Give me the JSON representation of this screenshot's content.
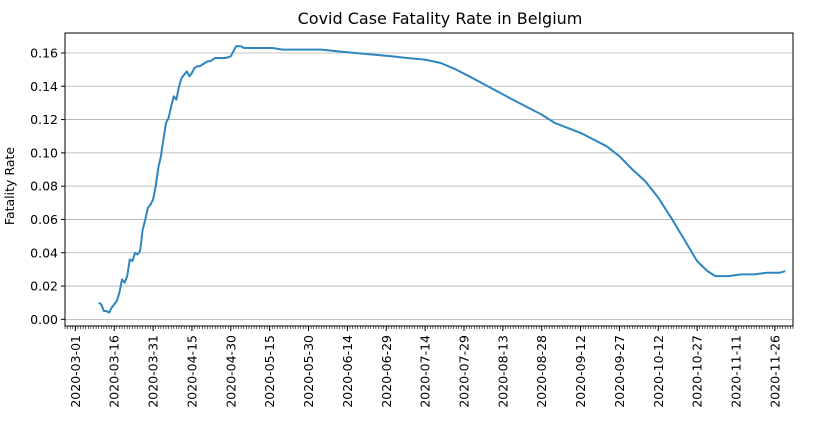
{
  "chart_data": {
    "type": "line",
    "title": "Covid Case Fatality Rate in Belgium",
    "xlabel": "",
    "ylabel": "Fatality Rate",
    "grid": "horizontal",
    "xlim": [
      "2020-02-26",
      "2020-12-03"
    ],
    "ylim": [
      -0.004,
      0.172
    ],
    "yticks": [
      0.0,
      0.02,
      0.04,
      0.06,
      0.08,
      0.1,
      0.12,
      0.14,
      0.16
    ],
    "ytick_labels": [
      "0.00",
      "0.02",
      "0.04",
      "0.06",
      "0.08",
      "0.10",
      "0.12",
      "0.14",
      "0.16"
    ],
    "xtick_labels": [
      "2020-03-01",
      "2020-03-16",
      "2020-03-31",
      "2020-04-15",
      "2020-04-30",
      "2020-05-15",
      "2020-05-30",
      "2020-06-14",
      "2020-06-29",
      "2020-07-14",
      "2020-07-29",
      "2020-08-13",
      "2020-08-28",
      "2020-09-12",
      "2020-09-27",
      "2020-10-12",
      "2020-10-27",
      "2020-11-11",
      "2020-11-26"
    ],
    "line_color": "#2e86c1",
    "series": [
      {
        "x": [
          "2020-03-10",
          "2020-03-11",
          "2020-03-12",
          "2020-03-13",
          "2020-03-14",
          "2020-03-15",
          "2020-03-16",
          "2020-03-17",
          "2020-03-18",
          "2020-03-19",
          "2020-03-20",
          "2020-03-21",
          "2020-03-22",
          "2020-03-23",
          "2020-03-24",
          "2020-03-25",
          "2020-03-26",
          "2020-03-27",
          "2020-03-28",
          "2020-03-29",
          "2020-03-30",
          "2020-03-31",
          "2020-04-01",
          "2020-04-02",
          "2020-04-03",
          "2020-04-04",
          "2020-04-05",
          "2020-04-06",
          "2020-04-07",
          "2020-04-08",
          "2020-04-09",
          "2020-04-10",
          "2020-04-11",
          "2020-04-12",
          "2020-04-13",
          "2020-04-14",
          "2020-04-15",
          "2020-04-16",
          "2020-04-17",
          "2020-04-18",
          "2020-04-19",
          "2020-04-20",
          "2020-04-21",
          "2020-04-22",
          "2020-04-23",
          "2020-04-24",
          "2020-04-25",
          "2020-04-26",
          "2020-04-28",
          "2020-04-30",
          "2020-05-02",
          "2020-05-04",
          "2020-05-05",
          "2020-05-07",
          "2020-05-10",
          "2020-05-13",
          "2020-05-16",
          "2020-05-20",
          "2020-05-25",
          "2020-05-30",
          "2020-06-04",
          "2020-06-10",
          "2020-06-17",
          "2020-06-24",
          "2020-07-01",
          "2020-07-07",
          "2020-07-14",
          "2020-07-20",
          "2020-07-26",
          "2020-07-31",
          "2020-08-06",
          "2020-08-12",
          "2020-08-18",
          "2020-08-23",
          "2020-08-28",
          "2020-09-02",
          "2020-09-07",
          "2020-09-12",
          "2020-09-17",
          "2020-09-22",
          "2020-09-27",
          "2020-10-02",
          "2020-10-07",
          "2020-10-12",
          "2020-10-17",
          "2020-10-22",
          "2020-10-27",
          "2020-10-31",
          "2020-11-03",
          "2020-11-08",
          "2020-11-13",
          "2020-11-18",
          "2020-11-23",
          "2020-11-28",
          "2020-11-30"
        ],
        "y": [
          0.01,
          0.009,
          0.005,
          0.005,
          0.004,
          0.007,
          0.009,
          0.011,
          0.016,
          0.024,
          0.022,
          0.026,
          0.036,
          0.035,
          0.04,
          0.039,
          0.041,
          0.054,
          0.06,
          0.067,
          0.069,
          0.072,
          0.08,
          0.091,
          0.098,
          0.108,
          0.118,
          0.121,
          0.128,
          0.134,
          0.132,
          0.14,
          0.145,
          0.147,
          0.149,
          0.146,
          0.148,
          0.151,
          0.152,
          0.152,
          0.153,
          0.154,
          0.155,
          0.155,
          0.156,
          0.157,
          0.157,
          0.157,
          0.157,
          0.158,
          0.164,
          0.164,
          0.163,
          0.163,
          0.163,
          0.163,
          0.163,
          0.162,
          0.162,
          0.162,
          0.162,
          0.161,
          0.16,
          0.159,
          0.158,
          0.157,
          0.156,
          0.154,
          0.15,
          0.146,
          0.141,
          0.136,
          0.131,
          0.127,
          0.123,
          0.118,
          0.115,
          0.112,
          0.108,
          0.104,
          0.098,
          0.09,
          0.083,
          0.073,
          0.061,
          0.048,
          0.035,
          0.029,
          0.026,
          0.026,
          0.027,
          0.027,
          0.028,
          0.028,
          0.029
        ]
      }
    ]
  }
}
